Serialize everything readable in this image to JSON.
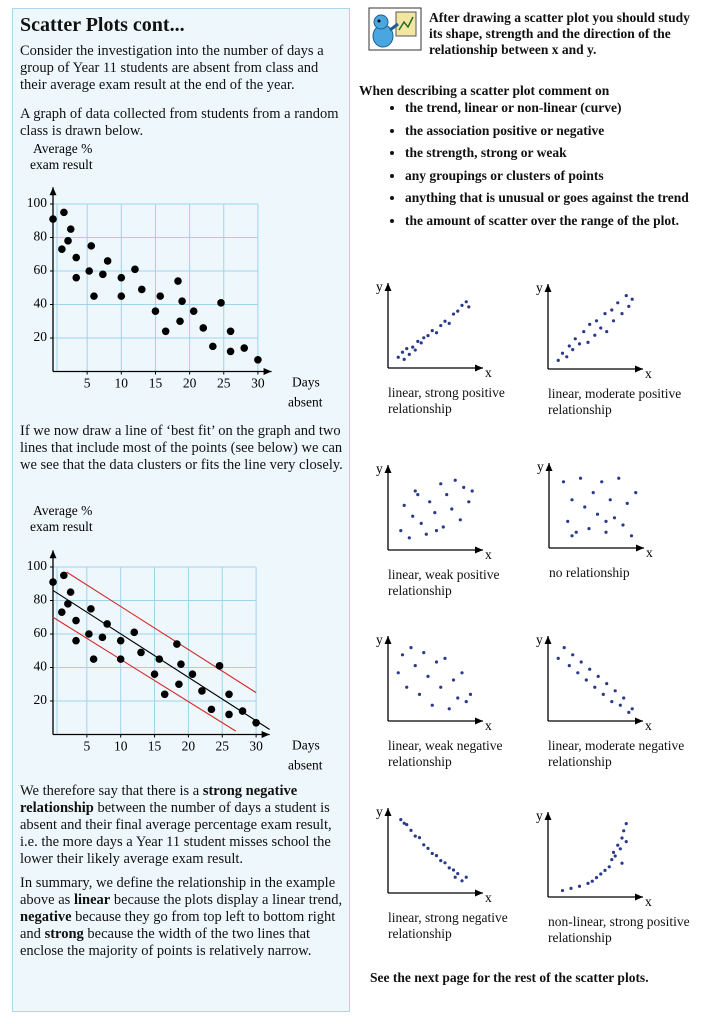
{
  "left": {
    "title": "Scatter Plots cont...",
    "intro": "Consider the investigation into the number of days a group of Year 11 students are absent from class and their average exam result at the end of the year.",
    "graph_note": "A graph of data collected from students from a random class is drawn below.",
    "chart_note": "If we now draw a line of ‘best fit’ on the graph and two lines that include most of the points (see below) we can we see that the data clusters or fits the line very closely.",
    "conclusion": [
      "We therefore say that there is a ",
      "strong negative relationship",
      " between the number of days a student is absent and their final average percentage exam result, i.e. the more days a Year 11 student misses school the lower their likely average exam result."
    ],
    "summary": [
      "In summary, we define the relationship in the example above as ",
      "linear",
      " because the plots display a linear trend, ",
      "negative",
      " because they go from top left to bottom right and ",
      "strong",
      " because the width of the two lines that enclose the majority of points is relatively narrow."
    ]
  },
  "chart_data": [
    {
      "type": "scatter",
      "y_label": [
        "Average %",
        "exam result"
      ],
      "x_label": [
        "Days",
        "absent"
      ],
      "x": [
        0,
        1.3,
        1.6,
        2.2,
        2.6,
        3.4,
        3.4,
        5.3,
        5.6,
        6,
        7.3,
        8,
        10,
        10,
        12,
        13,
        15.7,
        15,
        16.5,
        18.3,
        18.6,
        18.9,
        20.6,
        22,
        23.4,
        24.6,
        26,
        26,
        28,
        30
      ],
      "y": [
        91,
        73,
        95,
        78,
        85,
        68,
        56,
        60,
        75,
        45,
        58,
        66,
        56,
        45,
        61,
        49,
        45,
        36,
        24,
        54,
        30,
        42,
        36,
        26,
        15,
        41,
        24,
        12,
        14,
        7
      ],
      "xlim": [
        0,
        32
      ],
      "ylim": [
        0,
        110
      ],
      "xticks": [
        5,
        10,
        15,
        20,
        25,
        30
      ],
      "yticks": [
        20,
        40,
        60,
        80,
        100
      ],
      "grid": true,
      "color": "#000000"
    },
    {
      "type": "scatter",
      "y_label": [
        "Average %",
        "exam result"
      ],
      "x_label": [
        "Days",
        "absent"
      ],
      "x": [
        0,
        1.3,
        1.6,
        2.2,
        2.6,
        3.4,
        3.4,
        5.3,
        5.6,
        6,
        7.3,
        8,
        10,
        10,
        12,
        13,
        15.7,
        15,
        16.5,
        18.3,
        18.6,
        18.9,
        20.6,
        22,
        23.4,
        24.6,
        26,
        26,
        28,
        30
      ],
      "y": [
        91,
        73,
        95,
        78,
        85,
        68,
        56,
        60,
        75,
        45,
        58,
        66,
        56,
        45,
        61,
        49,
        45,
        36,
        24,
        54,
        30,
        42,
        36,
        26,
        15,
        41,
        24,
        12,
        14,
        7
      ],
      "xlim": [
        0,
        32
      ],
      "ylim": [
        0,
        110
      ],
      "xticks": [
        5,
        10,
        15,
        20,
        25,
        30
      ],
      "yticks": [
        20,
        40,
        60,
        80,
        100
      ],
      "grid": true,
      "color": "#000000",
      "lines": [
        {
          "x": [
            0,
            32
          ],
          "y": [
            86,
            3
          ],
          "color": "#000000"
        },
        {
          "x": [
            2,
            30
          ],
          "y": [
            97,
            25
          ],
          "color": "#d42a2a"
        },
        {
          "x": [
            0,
            27
          ],
          "y": [
            70,
            2
          ],
          "color": "#d42a2a"
        }
      ]
    }
  ],
  "right": {
    "intro": "After drawing a scatter plot you should study its shape, strength and the direction of the relationship between x and y.",
    "prompt": "When describing a scatter plot comment on",
    "bullets": [
      "the trend, linear or non-linear (curve)",
      "the association positive or negative",
      "the strength, strong or weak",
      "any groupings or clusters of points",
      "anything that is unusual or goes against the trend",
      "the amount of scatter over the range of the plot."
    ],
    "footer": "See the next page for the rest of the scatter plots."
  },
  "small_plots": [
    {
      "type": "scatter",
      "caption": "linear, strong positive relationship",
      "x_label": "x",
      "y_label": "y",
      "color": "#2a3a8a",
      "x": [
        5,
        10,
        12,
        15,
        18,
        22,
        25,
        28,
        32,
        35,
        40,
        45,
        50,
        55,
        60,
        65,
        70,
        75,
        80,
        85,
        88
      ],
      "y": [
        8,
        15,
        5,
        20,
        12,
        22,
        18,
        30,
        28,
        35,
        38,
        45,
        42,
        52,
        58,
        55,
        68,
        72,
        80,
        85,
        78
      ]
    },
    {
      "type": "scatter",
      "caption": "linear, moderate positive relationship",
      "x_label": "x",
      "y_label": "y",
      "color": "#2a3a8a",
      "x": [
        5,
        10,
        15,
        18,
        22,
        25,
        30,
        35,
        40,
        42,
        48,
        50,
        55,
        60,
        62,
        68,
        70,
        75,
        80,
        85,
        88,
        92
      ],
      "y": [
        5,
        15,
        10,
        25,
        20,
        35,
        28,
        45,
        30,
        55,
        40,
        60,
        50,
        70,
        45,
        75,
        60,
        85,
        70,
        95,
        80,
        90
      ]
    },
    {
      "type": "scatter",
      "caption": "linear, weak positive relationship",
      "x_label": "x",
      "y_label": "y",
      "color": "#2a3a8a",
      "x": [
        8,
        12,
        18,
        22,
        28,
        32,
        38,
        42,
        48,
        55,
        58,
        62,
        68,
        72,
        78,
        82,
        88,
        92,
        50,
        25
      ],
      "y": [
        20,
        55,
        10,
        40,
        70,
        30,
        15,
        60,
        45,
        85,
        25,
        70,
        50,
        90,
        35,
        80,
        60,
        75,
        20,
        75
      ]
    },
    {
      "type": "scatter",
      "caption": "no relationship",
      "x_label": "x",
      "y_label": "y",
      "color": "#2a3a8a",
      "x": [
        10,
        15,
        20,
        25,
        30,
        35,
        40,
        45,
        50,
        55,
        60,
        65,
        70,
        75,
        80,
        85,
        90,
        95,
        20,
        60
      ],
      "y": [
        85,
        30,
        60,
        15,
        90,
        50,
        20,
        70,
        40,
        85,
        15,
        60,
        35,
        90,
        25,
        55,
        10,
        70,
        10,
        30
      ]
    },
    {
      "type": "scatter",
      "caption": "linear, weak negative relationship",
      "x_label": "x",
      "y_label": "y",
      "color": "#2a3a8a",
      "x": [
        5,
        10,
        15,
        20,
        25,
        30,
        35,
        40,
        45,
        50,
        55,
        60,
        65,
        70,
        75,
        80,
        85,
        90
      ],
      "y": [
        60,
        85,
        40,
        95,
        70,
        30,
        88,
        55,
        15,
        75,
        40,
        80,
        10,
        50,
        25,
        60,
        20,
        30
      ]
    },
    {
      "type": "scatter",
      "caption": "linear, moderate negative relationship",
      "x_label": "x",
      "y_label": "y",
      "color": "#2a3a8a",
      "x": [
        5,
        12,
        18,
        22,
        28,
        32,
        38,
        42,
        48,
        52,
        58,
        62,
        68,
        72,
        78,
        82,
        88,
        92
      ],
      "y": [
        80,
        95,
        70,
        85,
        60,
        75,
        50,
        65,
        40,
        55,
        30,
        45,
        20,
        35,
        15,
        25,
        5,
        10
      ]
    },
    {
      "type": "scatter",
      "caption": "linear, strong negative relationship",
      "x_label": "x",
      "y_label": "y",
      "color": "#2a3a8a",
      "x": [
        8,
        12,
        15,
        20,
        25,
        30,
        35,
        40,
        45,
        50,
        55,
        60,
        65,
        70,
        72,
        75,
        80,
        85
      ],
      "y": [
        95,
        90,
        88,
        80,
        72,
        70,
        60,
        55,
        48,
        45,
        38,
        35,
        28,
        25,
        15,
        20,
        10,
        15
      ]
    },
    {
      "type": "scatter",
      "caption": "non-linear, strong positive relationship",
      "x_label": "x",
      "y_label": "y",
      "color": "#2a3a8a",
      "x": [
        10,
        20,
        30,
        40,
        45,
        50,
        55,
        60,
        65,
        68,
        70,
        72,
        75,
        78,
        80,
        82,
        85,
        85,
        80
      ],
      "y": [
        2,
        5,
        8,
        12,
        15,
        20,
        25,
        30,
        35,
        45,
        55,
        50,
        65,
        60,
        75,
        85,
        95,
        70,
        40
      ]
    }
  ]
}
